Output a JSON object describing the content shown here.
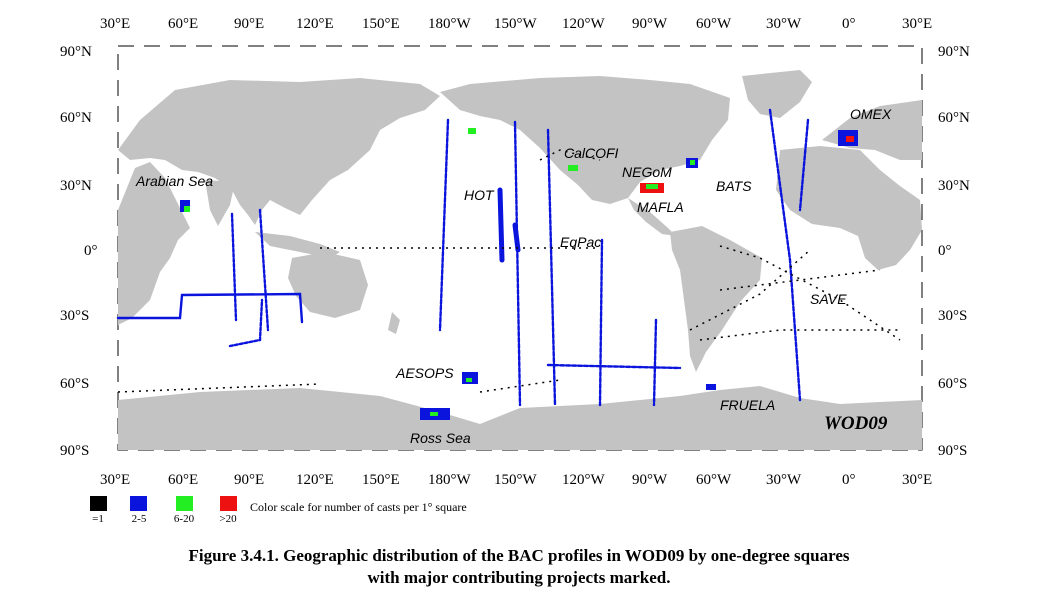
{
  "top_lon_labels": [
    "30°E",
    "60°E",
    "90°E",
    "120°E",
    "150°E",
    "180°W",
    "150°W",
    "120°W",
    "90°W",
    "60°W",
    "30°W",
    "0°",
    "30°E"
  ],
  "bottom_lon_labels": [
    "30°E",
    "60°E",
    "90°E",
    "120°E",
    "150°E",
    "180°W",
    "150°W",
    "120°W",
    "90°W",
    "60°W",
    "30°W",
    "0°",
    "30°E"
  ],
  "lat_labels_left": [
    "90°N",
    "60°N",
    "30°N",
    "0°",
    "30°S",
    "60°S",
    "90°S"
  ],
  "lat_labels_right": [
    "90°N",
    "60°N",
    "30°N",
    "0°",
    "30°S",
    "60°S",
    "90°S"
  ],
  "projects": {
    "arabian_sea": "Arabian Sea",
    "calcofi": "CalCOFI",
    "negom": "NEGoM",
    "bats": "BATS",
    "hot": "HOT",
    "mafla": "MAFLA",
    "eqpac": "EqPac",
    "omex": "OMEX",
    "save": "SAVE",
    "aesops": "AESOPS",
    "fruela": "FRUELA",
    "ross_sea": "Ross Sea"
  },
  "badge": "WOD09",
  "legend": {
    "items": [
      {
        "label": "=1",
        "color": "#000000"
      },
      {
        "label": "2-5",
        "color": "#0a14dc"
      },
      {
        "label": "6-20",
        "color": "#22ee22"
      },
      {
        "label": ">20",
        "color": "#ee1111"
      }
    ],
    "text": "Color scale for number of casts per 1° square"
  },
  "caption": {
    "line1": "Figure 3.4.1. Geographic distribution of the BAC profiles in WOD09 by one-degree squares",
    "line2": "with major contributing projects marked."
  },
  "colors": {
    "land": "#c3c3c3",
    "ocean": "#ffffff"
  }
}
